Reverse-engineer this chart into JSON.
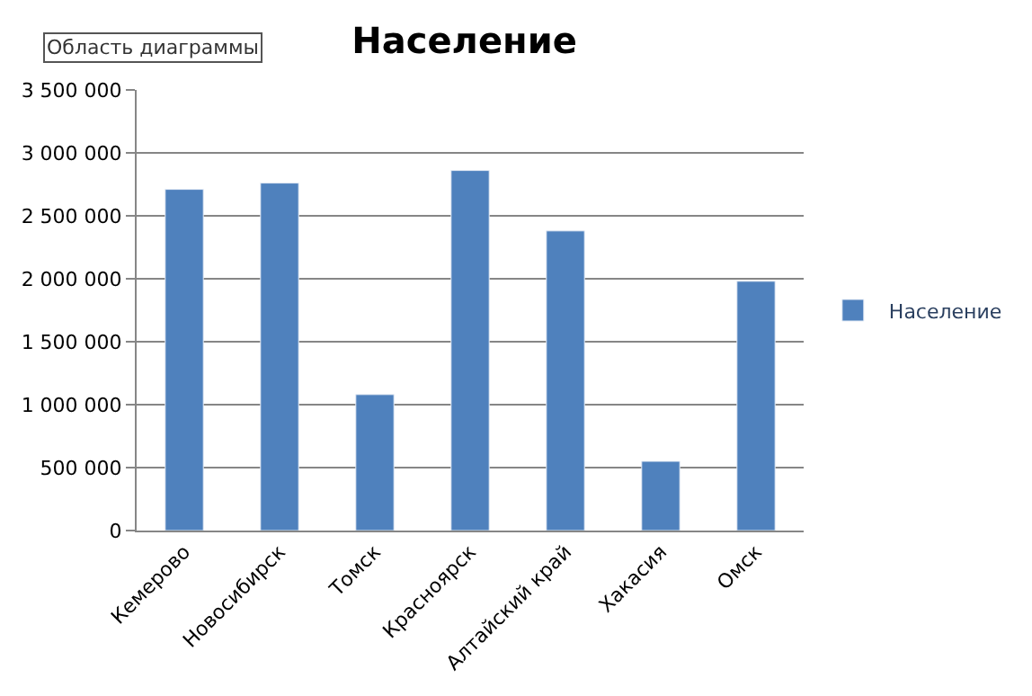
{
  "chart_data": {
    "type": "bar",
    "title": "Население",
    "categories": [
      "Кемерово",
      "Новосибирск",
      "Томск",
      "Красноярск",
      "Алтайский край",
      "Хакасия",
      "Омск"
    ],
    "series": [
      {
        "name": "Население",
        "color": "#4f81bd",
        "values": [
          2710000,
          2760000,
          1080000,
          2860000,
          2380000,
          550000,
          1980000
        ]
      }
    ],
    "ylim": [
      0,
      3500000
    ],
    "yticks": [
      0,
      {
        "value": 500000,
        "label": "500 000"
      },
      {
        "value": 1000000,
        "label": "1 000 000"
      },
      {
        "value": 1500000,
        "label": "1 500 000"
      },
      {
        "value": 2000000,
        "label": "2 000 000"
      },
      {
        "value": 2500000,
        "label": "2 500 000"
      },
      {
        "value": 3000000,
        "label": "3 000 000"
      },
      {
        "value": 3500000,
        "label": "3 500 000"
      }
    ],
    "grid": "y",
    "legend": "right",
    "annotations": [
      "Область диаграммы"
    ]
  }
}
